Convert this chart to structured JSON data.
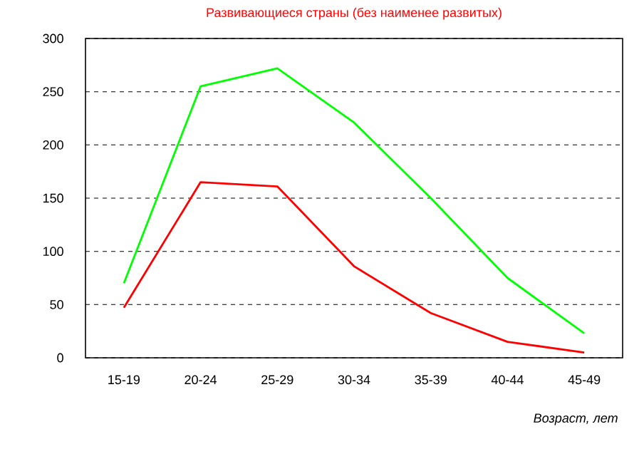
{
  "chart_data": {
    "type": "line",
    "title": "Развивающиеся страны (без наименее развитых)",
    "xlabel": "Возраст, лет",
    "categories": [
      "15-19",
      "20-24",
      "25-29",
      "30-34",
      "35-39",
      "40-44",
      "45-49"
    ],
    "series": [
      {
        "color": "#00ff00",
        "values": [
          70,
          255,
          272,
          221,
          150,
          75,
          23
        ]
      },
      {
        "color": "#ff0000",
        "values": [
          47,
          165,
          161,
          86,
          42,
          15,
          5
        ]
      }
    ],
    "ylim": [
      0,
      300
    ],
    "yticks": [
      0,
      50,
      100,
      150,
      200,
      250,
      300
    ],
    "grid": "y",
    "line_style": "solid",
    "marker": "none"
  }
}
